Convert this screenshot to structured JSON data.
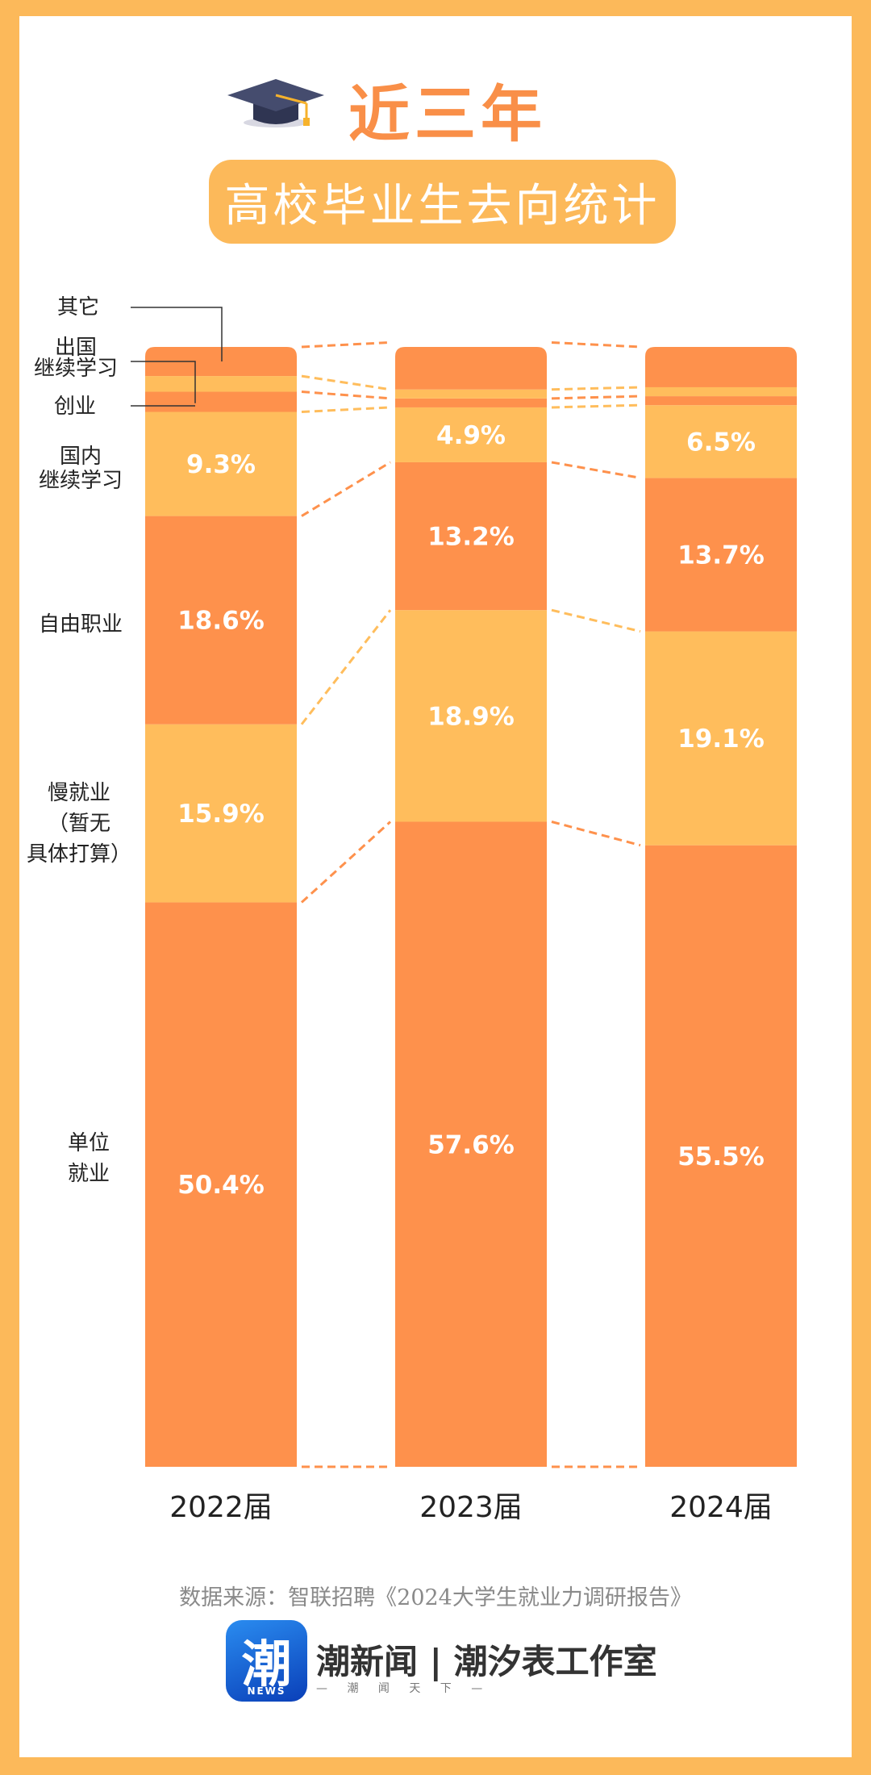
{
  "header": {
    "title": "近三年",
    "subtitle": "高校毕业生去向统计",
    "icon": "graduation-cap-icon"
  },
  "category_labels": {
    "other": "其它",
    "abroad": "出国\n继续学习",
    "startup": "创业",
    "domestic_study": "国内\n继续学习",
    "freelance": "自由职业",
    "slow_employment": "慢就业\n（暂无\n具体打算）",
    "employed": "单位\n就业"
  },
  "footer": {
    "source": "数据来源：智联招聘《2024大学生就业力调研报告》",
    "logo_char": "潮",
    "logo_news": "NEWS",
    "brand": "潮新闻 | 潮汐表工作室",
    "brand_sub": "— 潮 闻 天 下 —"
  },
  "colors": {
    "background": "#fcb95a",
    "dark_orange": "#fe914c",
    "light_orange": "#ffbd5c",
    "title": "#f98f48"
  },
  "chart_data": {
    "type": "bar",
    "stacked": true,
    "categories": [
      "2022届",
      "2023届",
      "2024届"
    ],
    "series": [
      {
        "name": "单位就业",
        "values": [
          50.4,
          57.6,
          55.5
        ]
      },
      {
        "name": "慢就业（暂无具体打算）",
        "values": [
          15.9,
          18.9,
          19.1
        ]
      },
      {
        "name": "自由职业",
        "values": [
          18.6,
          13.2,
          13.7
        ]
      },
      {
        "name": "国内继续学习",
        "values": [
          9.3,
          4.9,
          6.5
        ]
      },
      {
        "name": "创业",
        "values": [
          1.8,
          0.8,
          0.8
        ]
      },
      {
        "name": "出国继续学习",
        "values": [
          1.4,
          0.8,
          0.8
        ]
      },
      {
        "name": "其它",
        "values": [
          2.6,
          4.2,
          3.6
        ]
      }
    ],
    "data_labels": [
      [
        "50.4%",
        "57.6%",
        "55.5%"
      ],
      [
        "15.9%",
        "18.9%",
        "19.1%"
      ],
      [
        "18.6%",
        "13.2%",
        "13.7%"
      ],
      [
        "9.3%",
        "4.9%",
        "6.5%"
      ]
    ],
    "ylim": [
      0,
      100
    ]
  }
}
